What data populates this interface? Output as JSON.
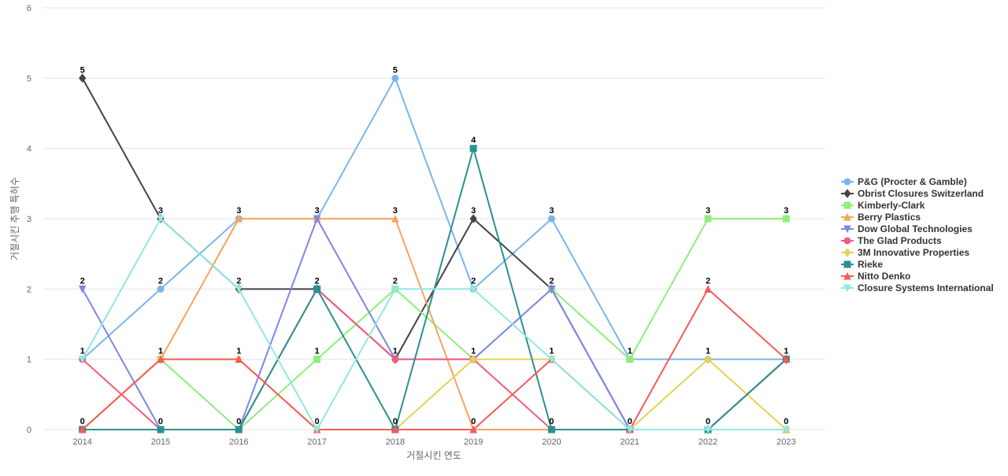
{
  "chart_data": {
    "type": "line",
    "title": "",
    "xlabel": "거절시킨 연도",
    "ylabel": "거절시킨 추행 특허수",
    "x": [
      "2014",
      "2015",
      "2016",
      "2017",
      "2018",
      "2019",
      "2020",
      "2021",
      "2022",
      "2023"
    ],
    "ylim": [
      0,
      6
    ],
    "yticks": [
      0,
      1,
      2,
      3,
      4,
      5,
      6
    ],
    "grid": true,
    "legend_position": "right",
    "series": [
      {
        "name": "P&G (Procter & Gamble)",
        "color": "#7cb5ec",
        "marker": "circle",
        "values": [
          1,
          2,
          3,
          3,
          5,
          2,
          3,
          1,
          1,
          1
        ]
      },
      {
        "name": "Obrist Closures Switzerland",
        "color": "#434348",
        "marker": "diamond",
        "values": [
          5,
          3,
          2,
          2,
          1,
          3,
          2,
          0,
          0,
          1
        ]
      },
      {
        "name": "Kimberly-Clark",
        "color": "#90ed7d",
        "marker": "square",
        "values": [
          0,
          1,
          0,
          1,
          2,
          1,
          2,
          1,
          3,
          3
        ]
      },
      {
        "name": "Berry Plastics",
        "color": "#f7a35c",
        "marker": "triangle",
        "values": [
          0,
          1,
          3,
          3,
          3,
          0,
          0,
          0,
          0,
          0
        ]
      },
      {
        "name": "Dow Global Technologies",
        "color": "#8085e9",
        "marker": "triangle-down",
        "values": [
          2,
          0,
          0,
          3,
          1,
          1,
          2,
          0,
          0,
          1
        ]
      },
      {
        "name": "The Glad Products",
        "color": "#f15c80",
        "marker": "circle",
        "values": [
          1,
          0,
          0,
          2,
          1,
          1,
          0,
          0,
          0,
          1
        ]
      },
      {
        "name": "3M Innovative Properties",
        "color": "#e4d354",
        "marker": "diamond",
        "values": [
          0,
          1,
          1,
          0,
          0,
          1,
          1,
          0,
          1,
          0
        ]
      },
      {
        "name": "Rieke",
        "color": "#2b908f",
        "marker": "square",
        "values": [
          0,
          0,
          0,
          2,
          0,
          4,
          0,
          0,
          0,
          1
        ]
      },
      {
        "name": "Nitto Denko",
        "color": "#f45b5b",
        "marker": "triangle",
        "values": [
          0,
          1,
          1,
          0,
          0,
          0,
          1,
          0,
          2,
          1
        ]
      },
      {
        "name": "Closure Systems International",
        "color": "#91e8e1",
        "marker": "triangle-down",
        "values": [
          1,
          3,
          2,
          0,
          2,
          2,
          1,
          0,
          0,
          0
        ]
      }
    ],
    "data_labels": [
      {
        "x": "2014",
        "values": [
          5,
          2,
          1,
          0
        ]
      },
      {
        "x": "2015",
        "values": [
          3,
          2,
          1,
          0
        ]
      },
      {
        "x": "2016",
        "values": [
          3,
          2,
          1,
          0
        ]
      },
      {
        "x": "2017",
        "values": [
          3,
          2,
          1,
          0
        ]
      },
      {
        "x": "2018",
        "values": [
          5,
          3,
          2,
          1,
          0
        ]
      },
      {
        "x": "2019",
        "values": [
          4,
          3,
          2,
          1,
          0
        ]
      },
      {
        "x": "2020",
        "values": [
          3,
          2,
          1,
          0
        ]
      },
      {
        "x": "2021",
        "values": [
          1,
          0
        ]
      },
      {
        "x": "2022",
        "values": [
          3,
          2,
          1,
          0
        ]
      },
      {
        "x": "2023",
        "values": [
          3,
          1,
          0
        ]
      }
    ]
  }
}
